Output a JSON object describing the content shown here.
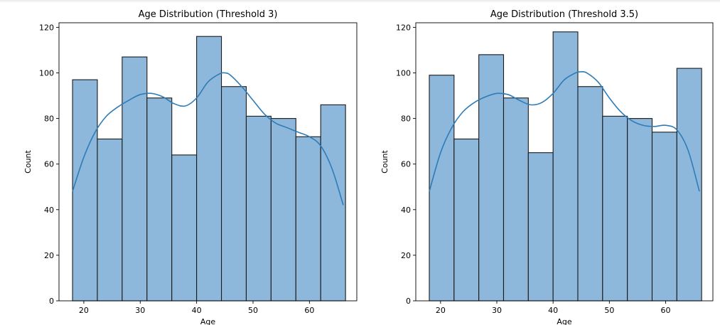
{
  "chart_data": [
    {
      "type": "bar",
      "title": "Age Distribution (Threshold 3)",
      "xlabel": "Age",
      "ylabel": "Count",
      "xlim": [
        15.6,
        68.4
      ],
      "ylim": [
        0,
        122
      ],
      "xticks": [
        "20",
        "30",
        "40",
        "50",
        "60"
      ],
      "yticks": [
        "0",
        "20",
        "40",
        "60",
        "80",
        "100",
        "120"
      ],
      "grid": false,
      "bin_edges": [
        18,
        22.4,
        26.8,
        31.2,
        35.6,
        40,
        44.4,
        48.8,
        53.2,
        57.6,
        62,
        66.4
      ],
      "values": [
        97,
        71,
        107,
        89,
        64,
        116,
        94,
        81,
        80,
        72,
        86
      ],
      "kde": {
        "x": [
          18,
          20,
          22,
          24,
          26,
          28,
          30,
          32,
          34,
          36,
          38,
          40,
          42,
          44,
          45,
          46,
          48,
          50,
          52,
          54,
          56,
          58,
          60,
          62,
          64,
          66
        ],
        "y": [
          48,
          63,
          74,
          81,
          85,
          88,
          90.5,
          91,
          89.5,
          86.5,
          85.5,
          89,
          96,
          99.5,
          100,
          99,
          94,
          88,
          82,
          78,
          76,
          74,
          72,
          68,
          58,
          42
        ]
      },
      "colors": {
        "bar": "#8db8db",
        "edge": "#1a1a1a",
        "kde": "#2e7cb8"
      }
    },
    {
      "type": "bar",
      "title": "Age Distribution (Threshold 3.5)",
      "xlabel": "Age",
      "ylabel": "Count",
      "xlim": [
        15.6,
        68.4
      ],
      "ylim": [
        0,
        122
      ],
      "xticks": [
        "20",
        "30",
        "40",
        "50",
        "60"
      ],
      "yticks": [
        "0",
        "20",
        "40",
        "60",
        "80",
        "100",
        "120"
      ],
      "grid": false,
      "bin_edges": [
        18,
        22.4,
        26.8,
        31.2,
        35.6,
        40,
        44.4,
        48.8,
        53.2,
        57.6,
        62,
        66.4
      ],
      "values": [
        99,
        71,
        108,
        89,
        65,
        118,
        94,
        81,
        80,
        74,
        102
      ],
      "kde": {
        "x": [
          18,
          20,
          22,
          24,
          26,
          28,
          30,
          32,
          34,
          36,
          38,
          40,
          42,
          44,
          45,
          46,
          48,
          50,
          52,
          54,
          56,
          58,
          60,
          62,
          64,
          66
        ],
        "y": [
          48,
          65,
          76,
          83,
          87,
          89.5,
          91,
          90.5,
          88,
          86,
          87,
          91,
          97,
          100,
          100.5,
          100,
          96,
          89,
          83,
          79,
          77,
          76.5,
          77,
          75,
          66,
          48
        ]
      },
      "colors": {
        "bar": "#8db8db",
        "edge": "#1a1a1a",
        "kde": "#2e7cb8"
      }
    }
  ]
}
